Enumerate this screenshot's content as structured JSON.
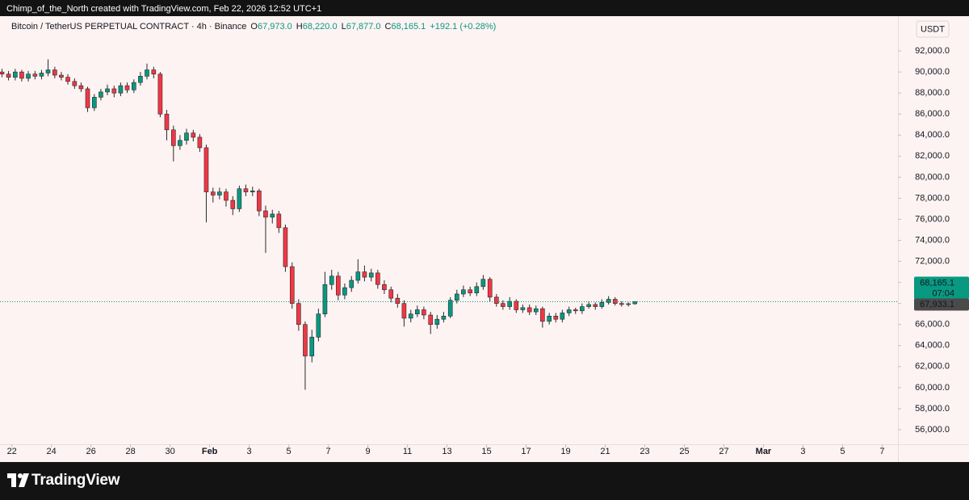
{
  "header": {
    "attribution": "Chimp_of_the_North created with TradingView.com, Feb 22, 2026 12:52 UTC+1",
    "logo": "TradingView"
  },
  "chart_data": {
    "type": "candlestick",
    "title": "Bitcoin / TetherUS PERPETUAL CONTRACT · 4h · Binance",
    "ohlc_prefixes": [
      "O",
      "H",
      "L",
      "C"
    ],
    "ohlc_labels": [
      "67,973.0",
      "68,220.0",
      "67,877.0",
      "68,165.1"
    ],
    "change_label": "+192.1 (+0.28%)",
    "currency": "USDT",
    "last_price": {
      "value": 68165.1,
      "label": "68,165.1"
    },
    "countdown": "07:04",
    "mark_price": {
      "value": 67933.1,
      "label": "67,933.1"
    },
    "up_color": "#089981",
    "down_color": "#f23645",
    "wick_color": "#2a2a2a",
    "xlim": [
      21.4,
      66.8
    ],
    "ylim": [
      55000,
      95000
    ],
    "xticks": [
      22,
      24,
      26,
      28,
      30,
      {
        "value": 32,
        "label": "Feb"
      },
      {
        "value": 34,
        "label": "3"
      },
      {
        "value": 36,
        "label": "5"
      },
      {
        "value": 38,
        "label": "7"
      },
      {
        "value": 40,
        "label": "9"
      },
      {
        "value": 42,
        "label": "11"
      },
      {
        "value": 44,
        "label": "13"
      },
      {
        "value": 46,
        "label": "15"
      },
      {
        "value": 48,
        "label": "17"
      },
      {
        "value": 50,
        "label": "19"
      },
      {
        "value": 52,
        "label": "21"
      },
      {
        "value": 54,
        "label": "23"
      },
      {
        "value": 56,
        "label": "25"
      },
      {
        "value": 58,
        "label": "27"
      },
      {
        "value": 60,
        "label": "Mar"
      },
      {
        "value": 62,
        "label": "3"
      },
      {
        "value": 64,
        "label": "5"
      },
      {
        "value": 66,
        "label": "7"
      }
    ],
    "yticks": [
      {
        "value": 56000,
        "label": "56,000.0"
      },
      {
        "value": 58000,
        "label": "58,000.0"
      },
      {
        "value": 60000,
        "label": "60,000.0"
      },
      {
        "value": 62000,
        "label": "62,000.0"
      },
      {
        "value": 64000,
        "label": "64,000.0"
      },
      {
        "value": 66000,
        "label": "66,000.0"
      },
      {
        "value": 68000,
        "label": "68,000.0"
      },
      {
        "value": 70000,
        "label": "70,000.0"
      },
      {
        "value": 72000,
        "label": "72,000.0"
      },
      {
        "value": 74000,
        "label": "74,000.0"
      },
      {
        "value": 76000,
        "label": "76,000.0"
      },
      {
        "value": 78000,
        "label": "78,000.0"
      },
      {
        "value": 80000,
        "label": "80,000.0"
      },
      {
        "value": 82000,
        "label": "82,000.0"
      },
      {
        "value": 84000,
        "label": "84,000.0"
      },
      {
        "value": 86000,
        "label": "86,000.0"
      },
      {
        "value": 88000,
        "label": "88,000.0"
      },
      {
        "value": 90000,
        "label": "90,000.0"
      },
      {
        "value": 92000,
        "label": "92,000.0"
      }
    ],
    "x": [
      21.5,
      21.83,
      22.17,
      22.5,
      22.83,
      23.17,
      23.5,
      23.83,
      24.17,
      24.5,
      24.83,
      25.17,
      25.5,
      25.83,
      26.17,
      26.5,
      26.83,
      27.17,
      27.5,
      27.83,
      28.17,
      28.5,
      28.83,
      29.17,
      29.5,
      29.83,
      30.17,
      30.5,
      30.83,
      31.17,
      31.5,
      31.83,
      32.17,
      32.5,
      32.83,
      33.17,
      33.5,
      33.83,
      34.17,
      34.5,
      34.83,
      35.17,
      35.5,
      35.83,
      36.17,
      36.5,
      36.83,
      37.17,
      37.5,
      37.83,
      38.17,
      38.5,
      38.83,
      39.17,
      39.5,
      39.83,
      40.17,
      40.5,
      40.83,
      41.17,
      41.5,
      41.83,
      42.17,
      42.5,
      42.83,
      43.17,
      43.5,
      43.83,
      44.17,
      44.5,
      44.83,
      45.17,
      45.5,
      45.83,
      46.17,
      46.5,
      46.83,
      47.17,
      47.5,
      47.83,
      48.17,
      48.5,
      48.83,
      49.17,
      49.5,
      49.83,
      50.17,
      50.5,
      50.83,
      51.17,
      51.5,
      51.83,
      52.17,
      52.5,
      52.83,
      53.17,
      53.5
    ],
    "open": [
      90000,
      89800,
      89500,
      90000,
      89400,
      89800,
      89600,
      89900,
      90200,
      89700,
      89500,
      89100,
      88700,
      88400,
      86600,
      87600,
      88100,
      88400,
      88000,
      88700,
      88300,
      89000,
      89600,
      90200,
      89800,
      86000,
      84500,
      83000,
      83500,
      84200,
      83800,
      82800,
      78600,
      78300,
      78600,
      77800,
      77000,
      78900,
      78600,
      78700,
      76800,
      76200,
      76500,
      75200,
      71500,
      68000,
      66000,
      63000,
      64800,
      67000,
      69800,
      70600,
      68800,
      69500,
      70200,
      71000,
      70500,
      70900,
      69800,
      69300,
      68500,
      68000,
      66600,
      67000,
      67400,
      66900,
      66000,
      66500,
      66800,
      68300,
      68900,
      69300,
      69000,
      69600,
      70300,
      68600,
      68000,
      67700,
      68200,
      67400,
      67600,
      67200,
      67500,
      66300,
      66800,
      66500,
      67100,
      67400,
      67300,
      67700,
      67900,
      67700,
      68100,
      68400,
      68000,
      67900,
      67973
    ],
    "high": [
      90300,
      90100,
      90300,
      90200,
      90100,
      90100,
      90200,
      91200,
      90500,
      90000,
      89800,
      89400,
      89000,
      88600,
      87900,
      88400,
      88800,
      88700,
      89000,
      89000,
      89300,
      90000,
      90800,
      90500,
      90000,
      86400,
      84900,
      84000,
      84600,
      84500,
      84100,
      83100,
      79000,
      79000,
      78900,
      78200,
      79200,
      79300,
      79100,
      78900,
      77300,
      76900,
      76800,
      75500,
      71900,
      68400,
      66300,
      65500,
      67500,
      71000,
      71200,
      71000,
      69900,
      70600,
      72200,
      71600,
      71300,
      71200,
      70200,
      69600,
      68900,
      68300,
      67400,
      67800,
      67700,
      67200,
      66900,
      67200,
      68600,
      69300,
      69700,
      69600,
      70000,
      70700,
      70500,
      68900,
      68300,
      68600,
      68400,
      67900,
      67900,
      67800,
      67700,
      67100,
      67100,
      67400,
      67700,
      67600,
      68000,
      68200,
      68100,
      68400,
      68700,
      68600,
      68200,
      68100,
      68220
    ],
    "low": [
      89500,
      89200,
      89200,
      89100,
      89100,
      89300,
      89300,
      89600,
      89400,
      89200,
      88800,
      88400,
      88100,
      86200,
      86300,
      87300,
      87800,
      87600,
      87700,
      88000,
      88000,
      88700,
      89300,
      89400,
      85700,
      83500,
      81500,
      82600,
      83100,
      83400,
      82400,
      75700,
      77600,
      77900,
      77200,
      76400,
      76700,
      78200,
      78200,
      76300,
      72800,
      75600,
      74700,
      71000,
      67500,
      65400,
      59800,
      62400,
      64400,
      66700,
      69300,
      68300,
      68400,
      69100,
      69900,
      70100,
      70100,
      69400,
      68900,
      68100,
      67600,
      65800,
      66200,
      66700,
      66500,
      65100,
      65600,
      66200,
      66600,
      68000,
      68600,
      68700,
      68700,
      69300,
      68200,
      67700,
      67400,
      67400,
      67100,
      67100,
      66900,
      66900,
      65700,
      66000,
      66200,
      66200,
      66800,
      67000,
      67000,
      67500,
      67400,
      67500,
      67900,
      67800,
      67700,
      67700,
      67877
    ],
    "close": [
      89800,
      89500,
      90000,
      89400,
      89800,
      89600,
      89900,
      90200,
      89700,
      89500,
      89100,
      88700,
      88400,
      86600,
      87600,
      88100,
      88400,
      88000,
      88700,
      88300,
      89000,
      89600,
      90200,
      89800,
      86000,
      84500,
      83000,
      83500,
      84200,
      83800,
      82800,
      78600,
      78300,
      78600,
      77800,
      77000,
      78900,
      78600,
      78700,
      76800,
      76200,
      76500,
      75200,
      71500,
      68000,
      66000,
      63000,
      64800,
      67000,
      69800,
      70600,
      68800,
      69500,
      70200,
      71000,
      70500,
      70900,
      69800,
      69300,
      68500,
      68000,
      66600,
      67000,
      67400,
      66900,
      66000,
      66500,
      66800,
      68300,
      68900,
      69300,
      69000,
      69600,
      70300,
      68600,
      68000,
      67700,
      68200,
      67400,
      67600,
      67200,
      67500,
      66300,
      66800,
      66500,
      67100,
      67400,
      67300,
      67700,
      67900,
      67700,
      68100,
      68400,
      68000,
      67900,
      67973,
      68165.1
    ]
  }
}
